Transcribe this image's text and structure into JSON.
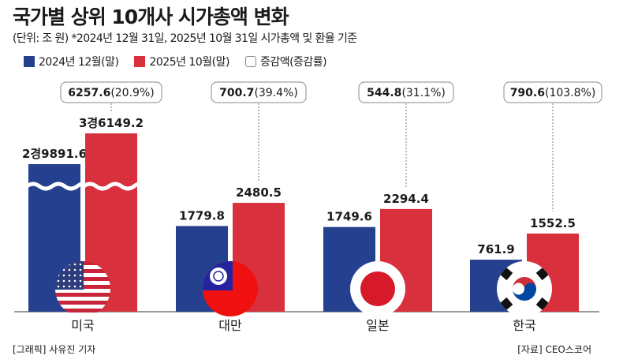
{
  "title": "국가별 상위 10개사 시가총액 변화",
  "subtitle": "(단위: 조 원) *2024년 12월 31일, 2025년 10월 31일 시가총액 및 환율 기준",
  "footer": {
    "credit": "[그래픽] 사유진 기자",
    "source": "[자료] CEO스코어"
  },
  "colors": {
    "dec2024": "#25408f",
    "oct2025": "#d9303e"
  },
  "chart_data": {
    "type": "bar",
    "title": "국가별 상위 10개사 시가총액 변화",
    "unit": "조 원",
    "categories": [
      "미국",
      "대만",
      "일본",
      "한국"
    ],
    "series": [
      {
        "name": "2024년 12월(말)",
        "values": [
          29891.6,
          1779.8,
          1749.6,
          761.9
        ],
        "labels": [
          "2경9891.6",
          "1779.8",
          "1749.6",
          "761.9"
        ]
      },
      {
        "name": "2025년 10월(말)",
        "values": [
          36149.2,
          2480.5,
          2294.4,
          1552.5
        ],
        "labels": [
          "3경6149.2",
          "2480.5",
          "2294.4",
          "1552.5"
        ]
      }
    ],
    "change_legend": "증감액(증감률)",
    "change": [
      {
        "amount": "6257.6",
        "rate": "(20.9%)"
      },
      {
        "amount": "700.7",
        "rate": "(39.4%)"
      },
      {
        "amount": "544.8",
        "rate": "(31.1%)"
      },
      {
        "amount": "790.6",
        "rate": "(103.8%)"
      }
    ],
    "flags": [
      "us-flag",
      "taiwan-flag",
      "japan-flag",
      "korea-flag"
    ],
    "broken_axis_category": "미국",
    "grid": false,
    "legend_position": "top-left"
  }
}
